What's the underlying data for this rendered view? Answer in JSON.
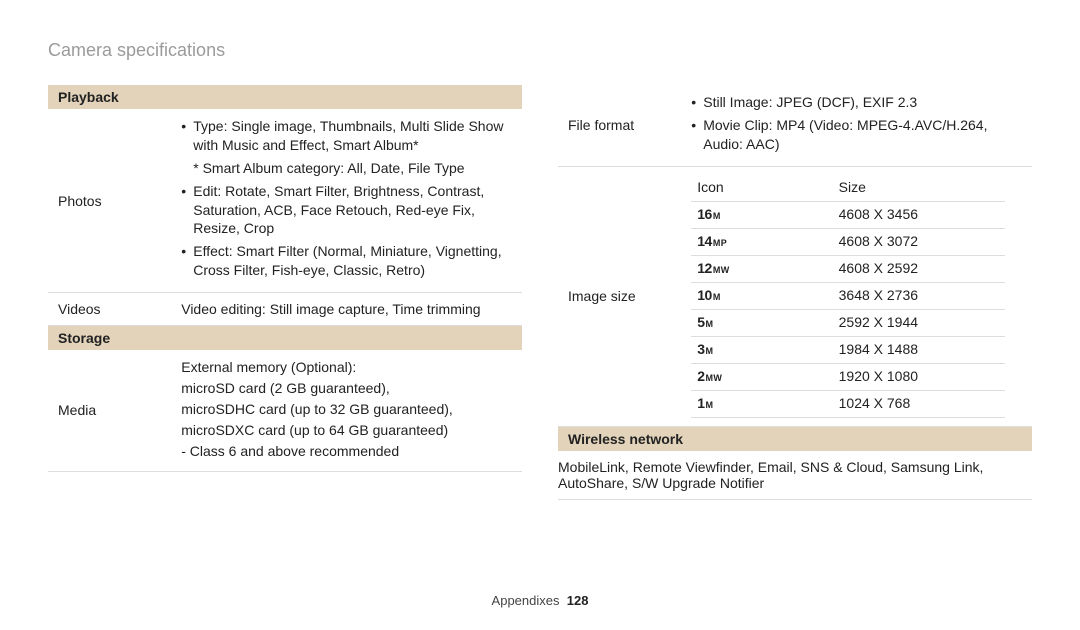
{
  "title": "Camera specifications",
  "footer": {
    "section": "Appendixes",
    "page": "128"
  },
  "colors": {
    "section_bg": "#e2d3ba",
    "title_color": "#9b9b9b",
    "rule": "#ddd"
  },
  "left": {
    "playback_header": "Playback",
    "photos_label": "Photos",
    "photos_bullet1": "Type: Single image, Thumbnails, Multi Slide Show with Music and Effect, Smart Album*",
    "photos_sub1": "* Smart Album category: All, Date, File Type",
    "photos_bullet2": "Edit: Rotate, Smart Filter, Brightness, Contrast, Saturation, ACB, Face Retouch, Red-eye Fix, Resize, Crop",
    "photos_bullet3": "Effect: Smart Filter (Normal, Miniature, Vignetting, Cross Filter, Fish-eye, Classic, Retro)",
    "videos_label": "Videos",
    "videos_value": "Video editing: Still image capture, Time trimming",
    "storage_header": "Storage",
    "media_label": "Media",
    "media_line1": "External memory (Optional):",
    "media_line2": "microSD card (2 GB guaranteed),",
    "media_line3": "microSDHC card (up to 32 GB guaranteed),",
    "media_line4": "microSDXC card (up to 64 GB guaranteed)",
    "media_line5": "- Class 6 and above recommended"
  },
  "right": {
    "fileformat_label": "File format",
    "ff_bullet1": "Still Image: JPEG (DCF), EXIF 2.3",
    "ff_bullet2": "Movie Clip: MP4 (Video: MPEG-4.AVC/H.264, Audio: AAC)",
    "imagesize_label": "Image size",
    "icon_header": "Icon",
    "size_header": "Size",
    "sizes": [
      {
        "num": "16",
        "unit": "M",
        "dim": "4608 X 3456"
      },
      {
        "num": "14",
        "unit": "MP",
        "dim": "4608 X 3072"
      },
      {
        "num": "12",
        "unit": "MW",
        "dim": "4608 X 2592"
      },
      {
        "num": "10",
        "unit": "M",
        "dim": "3648 X 2736"
      },
      {
        "num": "5",
        "unit": "M",
        "dim": "2592 X 1944"
      },
      {
        "num": "3",
        "unit": "M",
        "dim": "1984 X 1488"
      },
      {
        "num": "2",
        "unit": "MW",
        "dim": "1920 X 1080"
      },
      {
        "num": "1",
        "unit": "M",
        "dim": "1024 X 768"
      }
    ],
    "wireless_header": "Wireless network",
    "wireless_value": "MobileLink, Remote Viewfinder, Email, SNS & Cloud, Samsung Link, AutoShare, S/W Upgrade Notifier"
  }
}
